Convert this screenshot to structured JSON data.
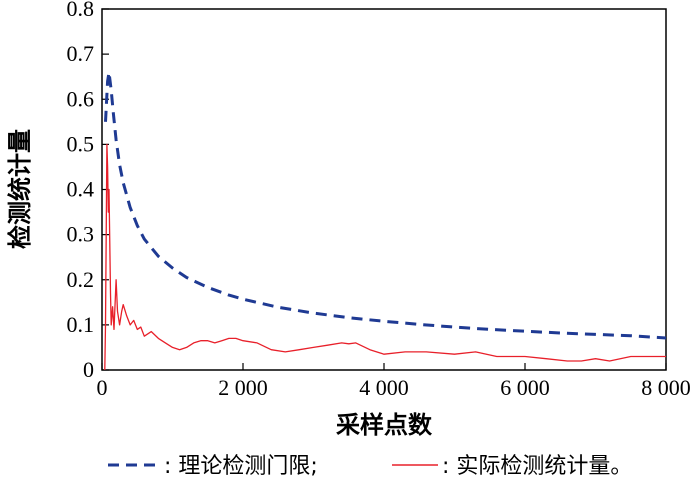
{
  "chart_data": {
    "type": "line",
    "title": "",
    "xlabel": "采样点数",
    "ylabel": "检测统计量",
    "xlim": [
      0,
      8000
    ],
    "ylim": [
      0,
      0.8
    ],
    "xticks": [
      0,
      2000,
      4000,
      6000,
      8000
    ],
    "xtick_labels": [
      "0",
      "2 000",
      "4 000",
      "6 000",
      "8 000"
    ],
    "yticks": [
      0,
      0.1,
      0.2,
      0.3,
      0.4,
      0.5,
      0.6,
      0.7,
      0.8
    ],
    "ytick_labels": [
      "0",
      "0.1",
      "0.2",
      "0.3",
      "0.4",
      "0.5",
      "0.6",
      "0.7",
      "0.8"
    ],
    "grid": false,
    "legend_position": "bottom",
    "legend": [
      {
        "label": ": 理论检测门限;",
        "style": "dashed",
        "color": "#1f3a93"
      },
      {
        "label": ": 实际检测统计量。",
        "style": "solid",
        "color": "#e8202a"
      }
    ],
    "series": [
      {
        "style": "dashed",
        "color": "#1f3a93",
        "x": [
          50,
          80,
          100,
          130,
          160,
          200,
          250,
          300,
          400,
          500,
          600,
          800,
          1000,
          1200,
          1500,
          1800,
          2000,
          2500,
          3000,
          3500,
          4000,
          4500,
          5000,
          5500,
          6000,
          6500,
          7000,
          7500,
          8000
        ],
        "y": [
          0.55,
          0.64,
          0.66,
          0.62,
          0.57,
          0.51,
          0.455,
          0.415,
          0.36,
          0.32,
          0.29,
          0.252,
          0.226,
          0.205,
          0.183,
          0.166,
          0.157,
          0.139,
          0.126,
          0.116,
          0.108,
          0.101,
          0.095,
          0.09,
          0.086,
          0.082,
          0.079,
          0.076,
          0.071
        ]
      },
      {
        "style": "solid",
        "color": "#e8202a",
        "x": [
          40,
          50,
          60,
          70,
          80,
          90,
          100,
          110,
          120,
          130,
          150,
          170,
          200,
          220,
          250,
          280,
          300,
          350,
          400,
          450,
          500,
          550,
          600,
          700,
          800,
          900,
          1000,
          1100,
          1200,
          1300,
          1400,
          1500,
          1600,
          1700,
          1800,
          1900,
          2000,
          2200,
          2400,
          2600,
          2800,
          3000,
          3200,
          3400,
          3500,
          3600,
          3800,
          4000,
          4300,
          4600,
          5000,
          5300,
          5600,
          6000,
          6300,
          6600,
          6800,
          7000,
          7200,
          7500,
          7800,
          8000
        ],
        "y": [
          0.0,
          0.1,
          0.3,
          0.5,
          0.45,
          0.35,
          0.4,
          0.28,
          0.17,
          0.1,
          0.14,
          0.09,
          0.2,
          0.13,
          0.1,
          0.13,
          0.145,
          0.12,
          0.1,
          0.11,
          0.09,
          0.095,
          0.075,
          0.085,
          0.07,
          0.06,
          0.05,
          0.045,
          0.05,
          0.06,
          0.065,
          0.065,
          0.06,
          0.065,
          0.07,
          0.07,
          0.065,
          0.06,
          0.045,
          0.04,
          0.045,
          0.05,
          0.055,
          0.06,
          0.058,
          0.06,
          0.045,
          0.035,
          0.04,
          0.04,
          0.035,
          0.04,
          0.03,
          0.03,
          0.025,
          0.02,
          0.02,
          0.025,
          0.02,
          0.03,
          0.03,
          0.03
        ]
      }
    ]
  }
}
